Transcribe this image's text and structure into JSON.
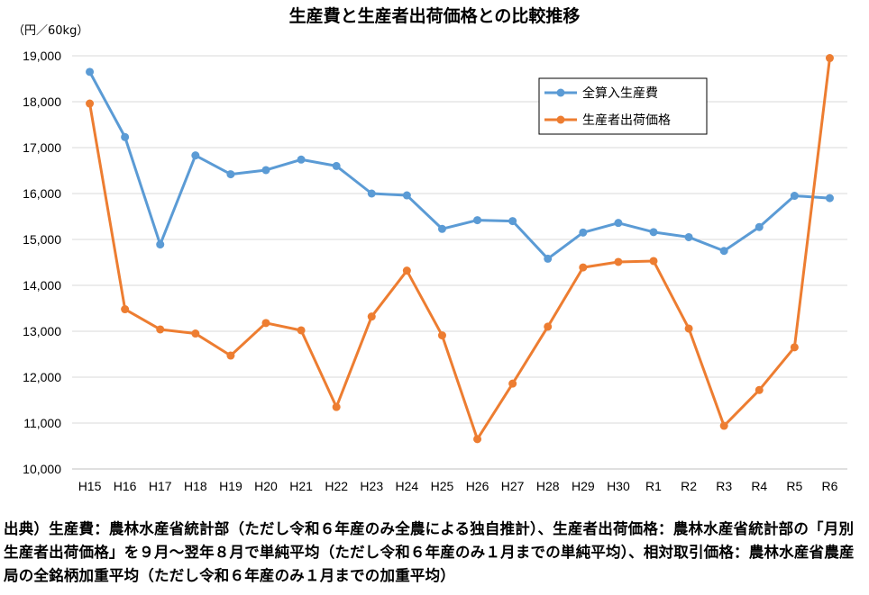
{
  "chart_data": {
    "type": "line",
    "title": "生産費と生産者出荷価格との比較推移",
    "ylabel": "（円／60kg）",
    "xlabel": "",
    "ylim": [
      10000,
      19000
    ],
    "ytick_labels": [
      "10,000",
      "11,000",
      "12,000",
      "13,000",
      "14,000",
      "15,000",
      "16,000",
      "17,000",
      "18,000",
      "19,000"
    ],
    "grid": "horizontal",
    "legend": "top-right",
    "categories": [
      "H15",
      "H16",
      "H17",
      "H18",
      "H19",
      "H20",
      "H21",
      "H22",
      "H23",
      "H24",
      "H25",
      "H26",
      "H27",
      "H28",
      "H29",
      "H30",
      "R1",
      "R2",
      "R3",
      "R4",
      "R5",
      "R6"
    ],
    "series": [
      {
        "name": "全算入生産費",
        "color": "#5b9bd5",
        "values": [
          18650,
          17230,
          14890,
          16830,
          16420,
          16510,
          16740,
          16600,
          16000,
          15960,
          15230,
          15420,
          15400,
          14580,
          15150,
          15360,
          15160,
          15050,
          14750,
          15270,
          15950,
          15900
        ]
      },
      {
        "name": "生産者出荷価格",
        "color": "#ed7d31",
        "values": [
          17960,
          13480,
          13040,
          12950,
          12470,
          13180,
          13020,
          11350,
          13320,
          14320,
          12910,
          10650,
          11860,
          13100,
          14390,
          14510,
          14530,
          13060,
          10940,
          11720,
          12650,
          18950
        ]
      }
    ]
  },
  "source": {
    "text": "出典）生産費：農林水産省統計部（ただし令和６年産のみ全農による独自推計）、生産者出荷価格：農林水産省統計部の「月別生産者出荷価格」を９月～翌年８月で単純平均（ただし令和６年産のみ１月までの単純平均）、相対取引価格：農林水産省農産局の全銘柄加重平均（ただし令和６年産のみ１月までの加重平均）"
  }
}
